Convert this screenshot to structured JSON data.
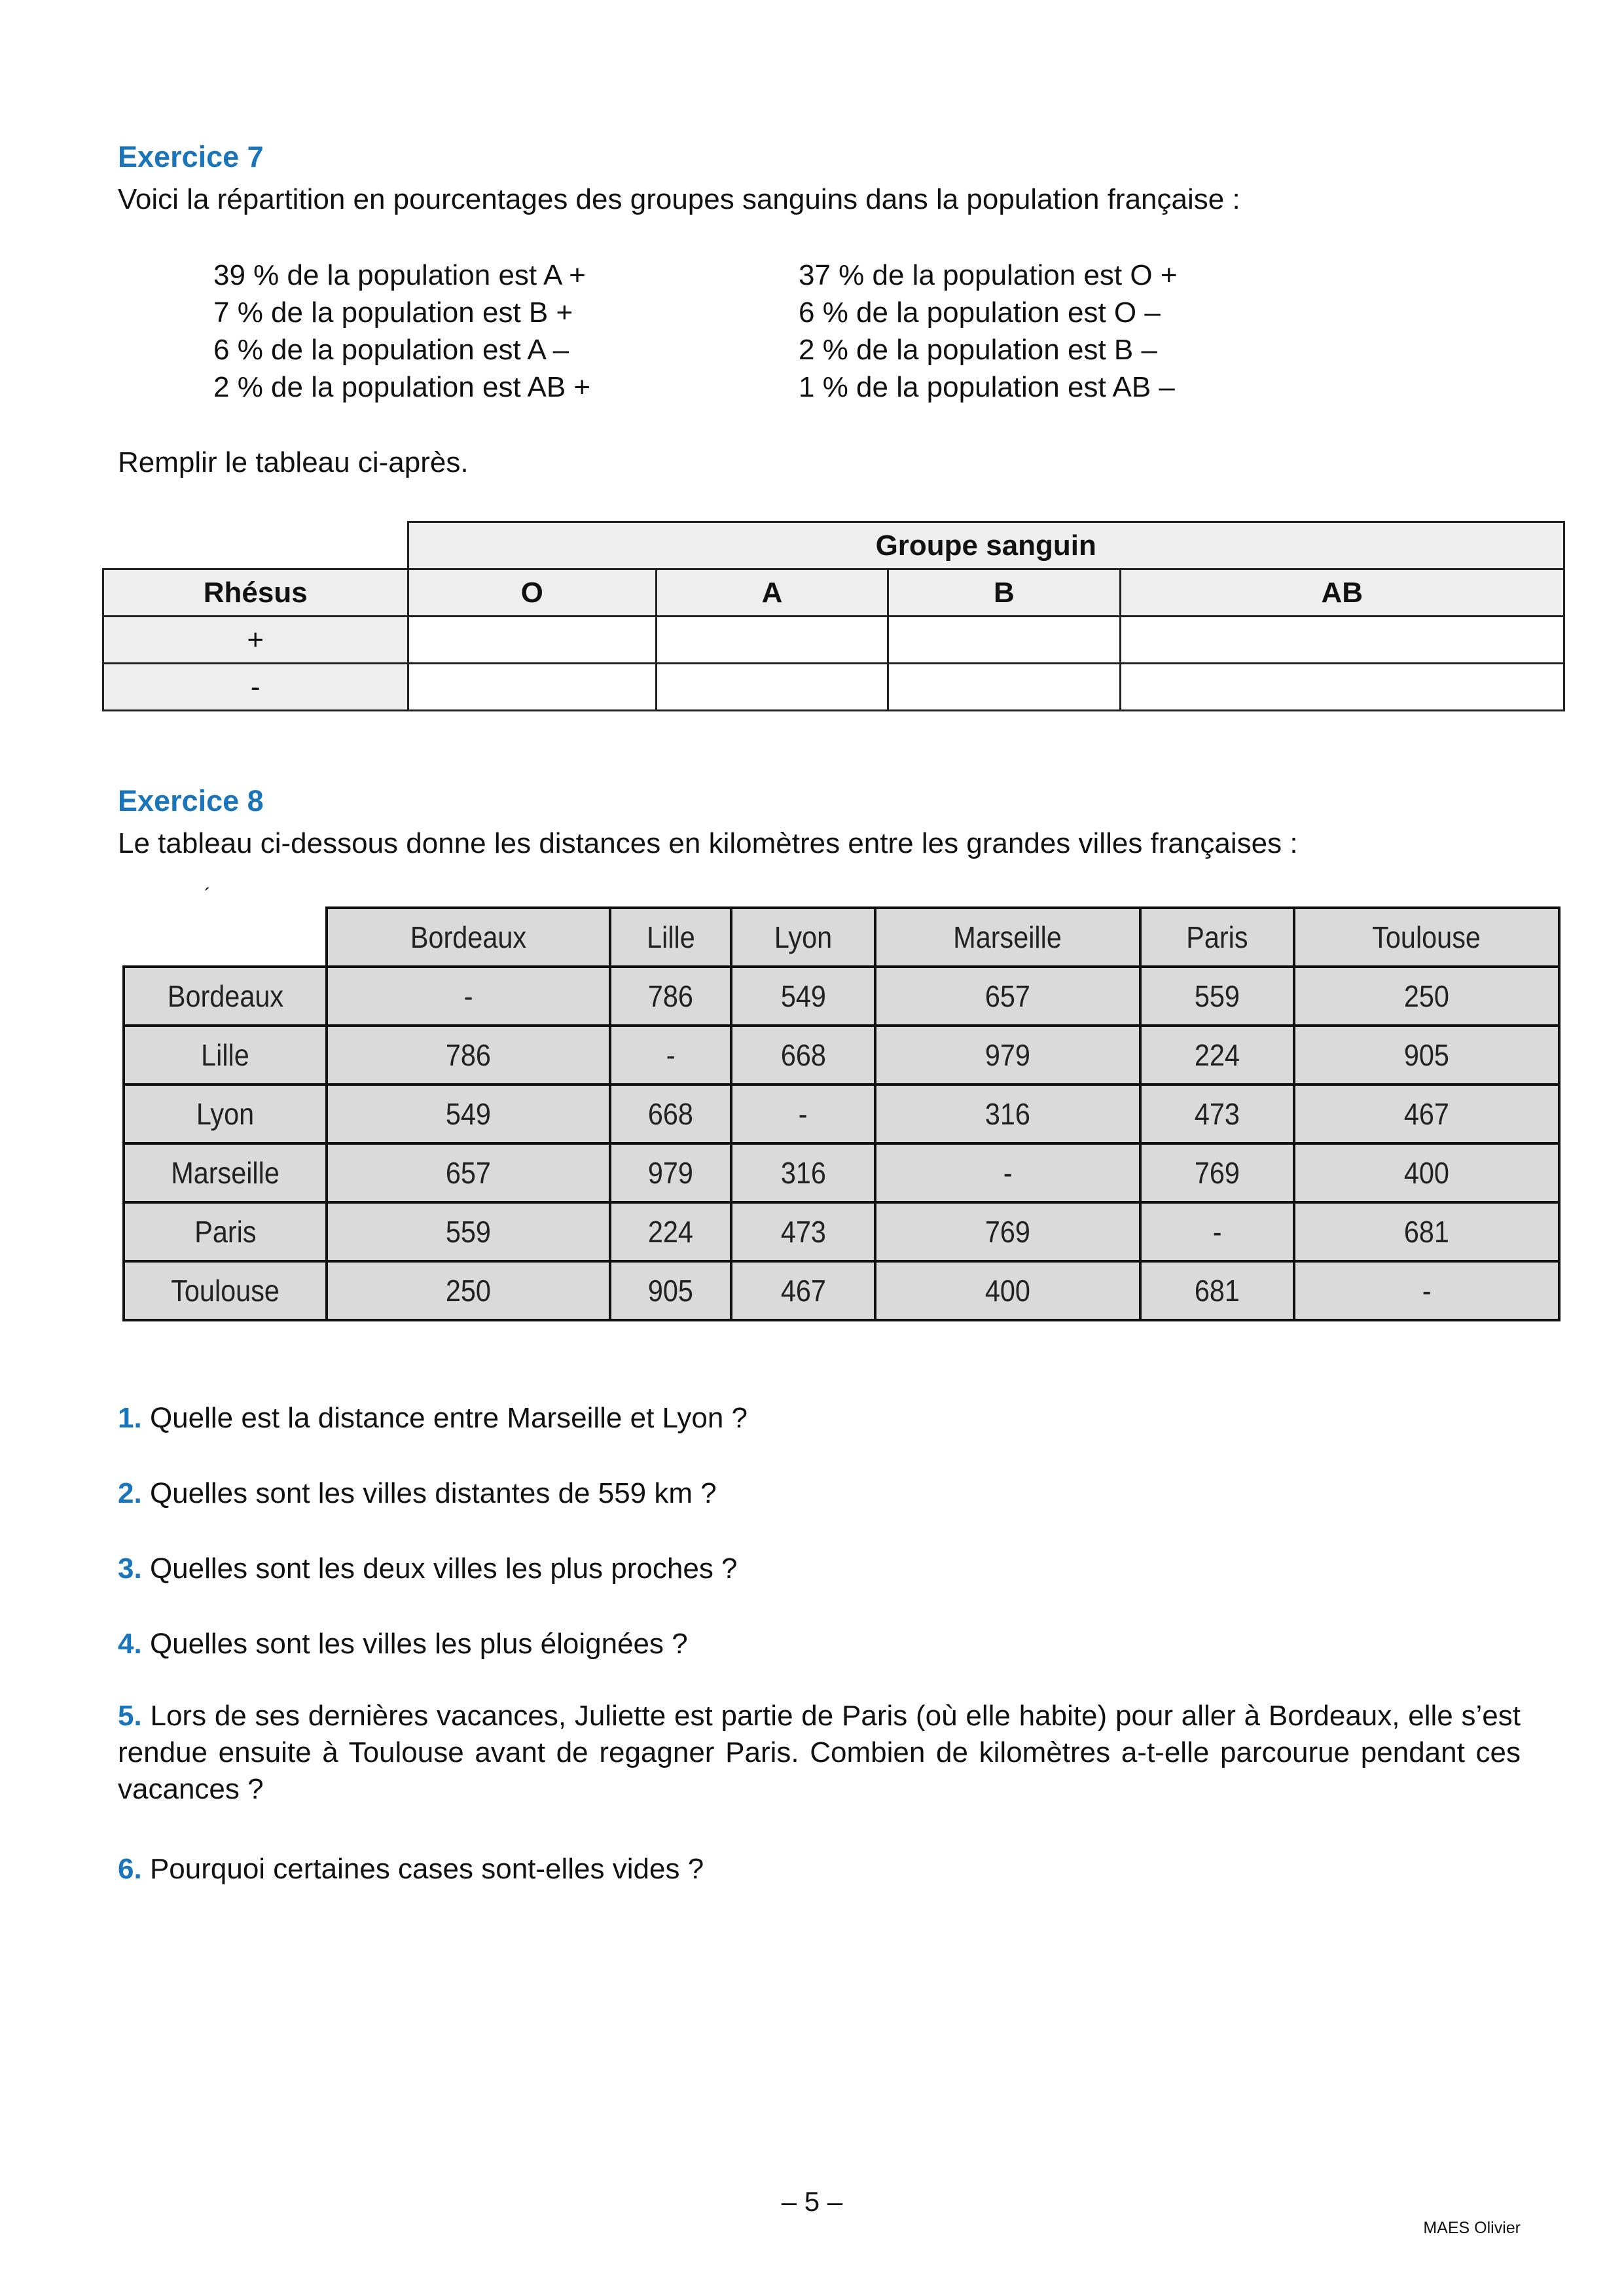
{
  "ex7": {
    "title": "Exercice 7",
    "intro": "Voici la répartition en pourcentages des groupes sanguins dans la population française :",
    "left": [
      "39 % de la population est A +",
      "7 % de la population est B +",
      "6 % de la population est A –",
      "2 % de la population est AB +"
    ],
    "right": [
      "37 % de la population est O +",
      "6 % de la population est O –",
      "2 % de la population est B –",
      "1 % de la population est AB –"
    ],
    "instruction": "Remplir le tableau ci-après.",
    "table": {
      "group_header": "Groupe sanguin",
      "row_header": "Rhésus",
      "columns": [
        "O",
        "A",
        "B",
        "AB"
      ],
      "rows": [
        "+",
        "-"
      ]
    }
  },
  "ex8": {
    "title": "Exercice 8",
    "intro": "Le tableau ci-dessous donne les distances en kilomètres entre les grandes villes françaises :",
    "stray_mark": "´",
    "table": {
      "columns": [
        "Bordeaux",
        "Lille",
        "Lyon",
        "Marseille",
        "Paris",
        "Toulouse"
      ],
      "rows": [
        {
          "city": "Bordeaux",
          "values": [
            "-",
            "786",
            "549",
            "657",
            "559",
            "250"
          ]
        },
        {
          "city": "Lille",
          "values": [
            "786",
            "-",
            "668",
            "979",
            "224",
            "905"
          ]
        },
        {
          "city": "Lyon",
          "values": [
            "549",
            "668",
            "-",
            "316",
            "473",
            "467"
          ]
        },
        {
          "city": "Marseille",
          "values": [
            "657",
            "979",
            "316",
            "-",
            "769",
            "400"
          ]
        },
        {
          "city": "Paris",
          "values": [
            "559",
            "224",
            "473",
            "769",
            "-",
            "681"
          ]
        },
        {
          "city": "Toulouse",
          "values": [
            "250",
            "905",
            "467",
            "400",
            "681",
            "-"
          ]
        }
      ]
    },
    "questions": [
      {
        "n": "1.",
        "text": "Quelle est la distance entre Marseille et Lyon ?"
      },
      {
        "n": "2.",
        "text": "Quelles sont les villes distantes de 559 km ?"
      },
      {
        "n": "3.",
        "text": "Quelles sont les deux villes les plus proches ?"
      },
      {
        "n": "4.",
        "text": "Quelles sont les villes les plus éloignées ?"
      },
      {
        "n": "5.",
        "text": "Lors de ses dernières vacances, Juliette est partie de Paris (où elle habite) pour aller à Bordeaux, elle s’est rendue ensuite à Toulouse avant de regagner Paris. Combien de kilomètres a-t-elle parcourue pendant ces vacances ?"
      },
      {
        "n": "6.",
        "text": "Pourquoi certaines cases sont-elles vides ?"
      }
    ]
  },
  "footer": {
    "page": "– 5 –",
    "author": "MAES Olivier"
  },
  "colors": {
    "heading": "#1a75bb",
    "header_cell": "#eeeeee",
    "distance_cell": "#dadada"
  }
}
